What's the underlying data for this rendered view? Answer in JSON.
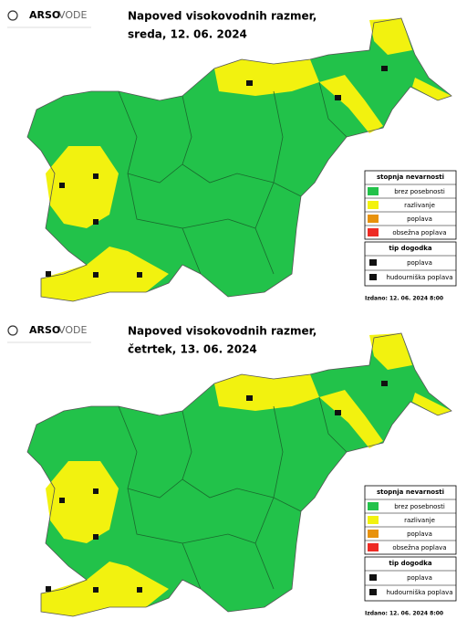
{
  "panels": [
    {
      "logo": {
        "brand": "ARSO",
        "section": "VODE"
      },
      "title": "Napoved visokovodnih razmer,",
      "date": "sreda, 12. 06. 2024",
      "legend": {
        "hazard_title": "stopnja nevarnosti",
        "hazard_levels": [
          "brez posebnosti",
          "razlivanje",
          "poplava",
          "obsežna poplava"
        ],
        "event_title": "tip dogodka",
        "event_types": [
          "poplava",
          "hudourniška poplava"
        ]
      },
      "issued": "Izdano: 12. 06. 2024 8:00"
    },
    {
      "logo": {
        "brand": "ARSO",
        "section": "VODE"
      },
      "title": "Napoved visokovodnih razmer,",
      "date": "četrtek, 13. 06. 2024",
      "legend": {
        "hazard_title": "stopnja nevarnosti",
        "hazard_levels": [
          "brez posebnosti",
          "razlivanje",
          "poplava",
          "obsežna poplava"
        ],
        "event_title": "tip dogodka",
        "event_types": [
          "poplava",
          "hudourniška poplava"
        ]
      },
      "issued": "Izdano: 12. 06. 2024 8:00"
    }
  ]
}
